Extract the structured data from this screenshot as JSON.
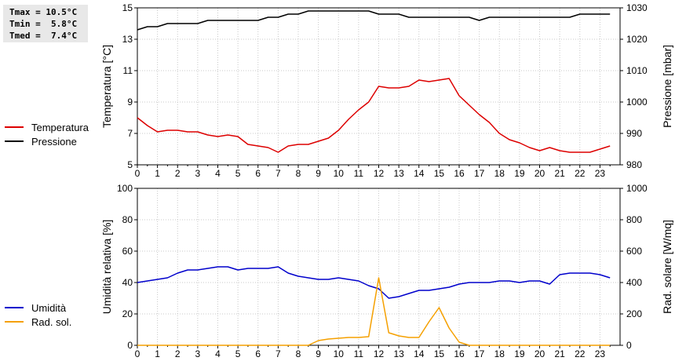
{
  "stats": {
    "tmax": "Tmax = 10.5°C",
    "tmin": "Tmin =  5.8°C",
    "tmed": "Tmed =  7.4°C"
  },
  "colors": {
    "temperature": "#dd0000",
    "pressure": "#000000",
    "humidity": "#0000cc",
    "radiation": "#f5a000",
    "grid": "#c8c8c8"
  },
  "chart_data": [
    {
      "type": "line",
      "ylabel": "Temperatura [°C]",
      "y2label": "Pressione [mbar]",
      "xlim": [
        0,
        24
      ],
      "ylim": [
        5,
        15
      ],
      "y2lim": [
        980,
        1030
      ],
      "xticks": [
        0,
        1,
        2,
        3,
        4,
        5,
        6,
        7,
        8,
        9,
        10,
        11,
        12,
        13,
        14,
        15,
        16,
        17,
        18,
        19,
        20,
        21,
        22,
        23
      ],
      "yticks": [
        5,
        7,
        9,
        11,
        13,
        15
      ],
      "y2ticks": [
        980,
        990,
        1000,
        1010,
        1020,
        1030
      ],
      "grid": true,
      "legend_position": "left",
      "series": [
        {
          "name": "Temperatura",
          "axis": "left",
          "x": [
            0,
            0.5,
            1,
            1.5,
            2,
            2.5,
            3,
            3.5,
            4,
            4.5,
            5,
            5.5,
            6,
            6.5,
            7,
            7.5,
            8,
            8.5,
            9,
            9.5,
            10,
            10.5,
            11,
            11.5,
            12,
            12.5,
            13,
            13.5,
            14,
            14.5,
            15,
            15.5,
            16,
            16.5,
            17,
            17.5,
            18,
            18.5,
            19,
            19.5,
            20,
            20.5,
            21,
            21.5,
            22,
            22.5,
            23,
            23.5
          ],
          "values": [
            8.0,
            7.5,
            7.1,
            7.2,
            7.2,
            7.1,
            7.1,
            6.9,
            6.8,
            6.9,
            6.8,
            6.3,
            6.2,
            6.1,
            5.8,
            6.2,
            6.3,
            6.3,
            6.5,
            6.7,
            7.2,
            7.9,
            8.5,
            9.0,
            10.0,
            9.9,
            9.9,
            10.0,
            10.4,
            10.3,
            10.4,
            10.5,
            9.4,
            8.8,
            8.2,
            7.7,
            7.0,
            6.6,
            6.4,
            6.1,
            5.9,
            6.1,
            5.9,
            5.8,
            5.8,
            5.8,
            6.0,
            6.2
          ]
        },
        {
          "name": "Pressione",
          "axis": "right",
          "x": [
            0,
            0.5,
            1,
            1.5,
            2,
            2.5,
            3,
            3.5,
            4,
            4.5,
            5,
            5.5,
            6,
            6.5,
            7,
            7.5,
            8,
            8.5,
            9,
            9.5,
            10,
            10.5,
            11,
            11.5,
            12,
            12.5,
            13,
            13.5,
            14,
            14.5,
            15,
            15.5,
            16,
            16.5,
            17,
            17.5,
            18,
            18.5,
            19,
            19.5,
            20,
            20.5,
            21,
            21.5,
            22,
            22.5,
            23,
            23.5
          ],
          "values": [
            1023,
            1024,
            1024,
            1025,
            1025,
            1025,
            1025,
            1026,
            1026,
            1026,
            1026,
            1026,
            1026,
            1027,
            1027,
            1028,
            1028,
            1029,
            1029,
            1029,
            1029,
            1029,
            1029,
            1029,
            1028,
            1028,
            1028,
            1027,
            1027,
            1027,
            1027,
            1027,
            1027,
            1027,
            1026,
            1027,
            1027,
            1027,
            1027,
            1027,
            1027,
            1027,
            1027,
            1027,
            1028,
            1028,
            1028,
            1028
          ]
        }
      ]
    },
    {
      "type": "line",
      "ylabel": "Umidità relativa [%]",
      "y2label": "Rad. solare [W/mq]",
      "xlim": [
        0,
        24
      ],
      "ylim": [
        0,
        100
      ],
      "y2lim": [
        0,
        1000
      ],
      "xticks": [
        0,
        1,
        2,
        3,
        4,
        5,
        6,
        7,
        8,
        9,
        10,
        11,
        12,
        13,
        14,
        15,
        16,
        17,
        18,
        19,
        20,
        21,
        22,
        23
      ],
      "yticks": [
        0,
        20,
        40,
        60,
        80,
        100
      ],
      "y2ticks": [
        0,
        200,
        400,
        600,
        800,
        1000
      ],
      "grid": true,
      "legend_position": "left",
      "series": [
        {
          "name": "Umidità",
          "axis": "left",
          "x": [
            0,
            0.5,
            1,
            1.5,
            2,
            2.5,
            3,
            3.5,
            4,
            4.5,
            5,
            5.5,
            6,
            6.5,
            7,
            7.5,
            8,
            8.5,
            9,
            9.5,
            10,
            10.5,
            11,
            11.5,
            12,
            12.5,
            13,
            13.5,
            14,
            14.5,
            15,
            15.5,
            16,
            16.5,
            17,
            17.5,
            18,
            18.5,
            19,
            19.5,
            20,
            20.5,
            21,
            21.5,
            22,
            22.5,
            23,
            23.5
          ],
          "values": [
            40,
            41,
            42,
            43,
            46,
            48,
            48,
            49,
            50,
            50,
            48,
            49,
            49,
            49,
            50,
            46,
            44,
            43,
            42,
            42,
            43,
            42,
            41,
            38,
            36,
            30,
            31,
            33,
            35,
            35,
            36,
            37,
            39,
            40,
            40,
            40,
            41,
            41,
            40,
            41,
            41,
            39,
            45,
            46,
            46,
            46,
            45,
            43
          ]
        },
        {
          "name": "Rad. sol.",
          "axis": "right",
          "x": [
            0,
            1,
            2,
            3,
            4,
            5,
            6,
            7,
            8,
            8.5,
            9,
            9.5,
            10,
            10.5,
            11,
            11.5,
            12,
            12.5,
            13,
            13.5,
            14,
            14.5,
            15,
            15.5,
            16,
            16.5,
            17,
            18,
            19,
            20,
            21,
            22,
            23,
            23.5
          ],
          "values": [
            0,
            0,
            0,
            0,
            0,
            0,
            0,
            0,
            0,
            0,
            30,
            40,
            45,
            50,
            50,
            55,
            430,
            80,
            60,
            50,
            50,
            150,
            240,
            110,
            20,
            0,
            0,
            0,
            0,
            0,
            0,
            0,
            0,
            0
          ]
        }
      ]
    }
  ]
}
